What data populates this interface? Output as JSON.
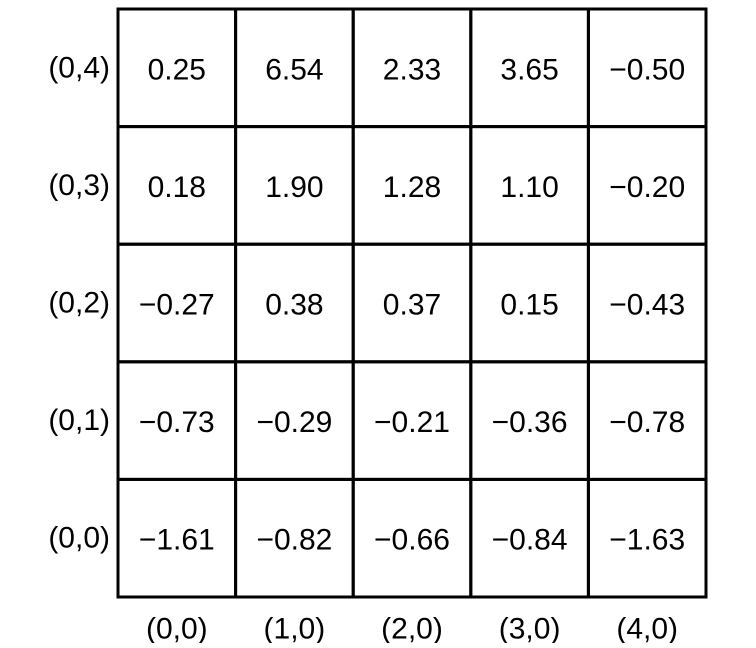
{
  "grid": {
    "rows": [
      {
        "row_label": "(0,4)",
        "values": [
          "0.25",
          "6.54",
          "2.33",
          "3.65",
          "−0.50"
        ]
      },
      {
        "row_label": "(0,3)",
        "values": [
          "0.18",
          "1.90",
          "1.28",
          "1.10",
          "−0.20"
        ]
      },
      {
        "row_label": "(0,2)",
        "values": [
          "−0.27",
          "0.38",
          "0.37",
          "0.15",
          "−0.43"
        ]
      },
      {
        "row_label": "(0,1)",
        "values": [
          "−0.73",
          "−0.29",
          "−0.21",
          "−0.36",
          "−0.78"
        ]
      },
      {
        "row_label": "(0,0)",
        "values": [
          "−1.61",
          "−0.82",
          "−0.66",
          "−0.84",
          "−1.63"
        ]
      }
    ],
    "column_labels": [
      "(0,0)",
      "(1,0)",
      "(2,0)",
      "(3,0)",
      "(4,0)"
    ]
  },
  "colors": {
    "line": "#000000",
    "text": "#000000",
    "background": "#ffffff"
  }
}
